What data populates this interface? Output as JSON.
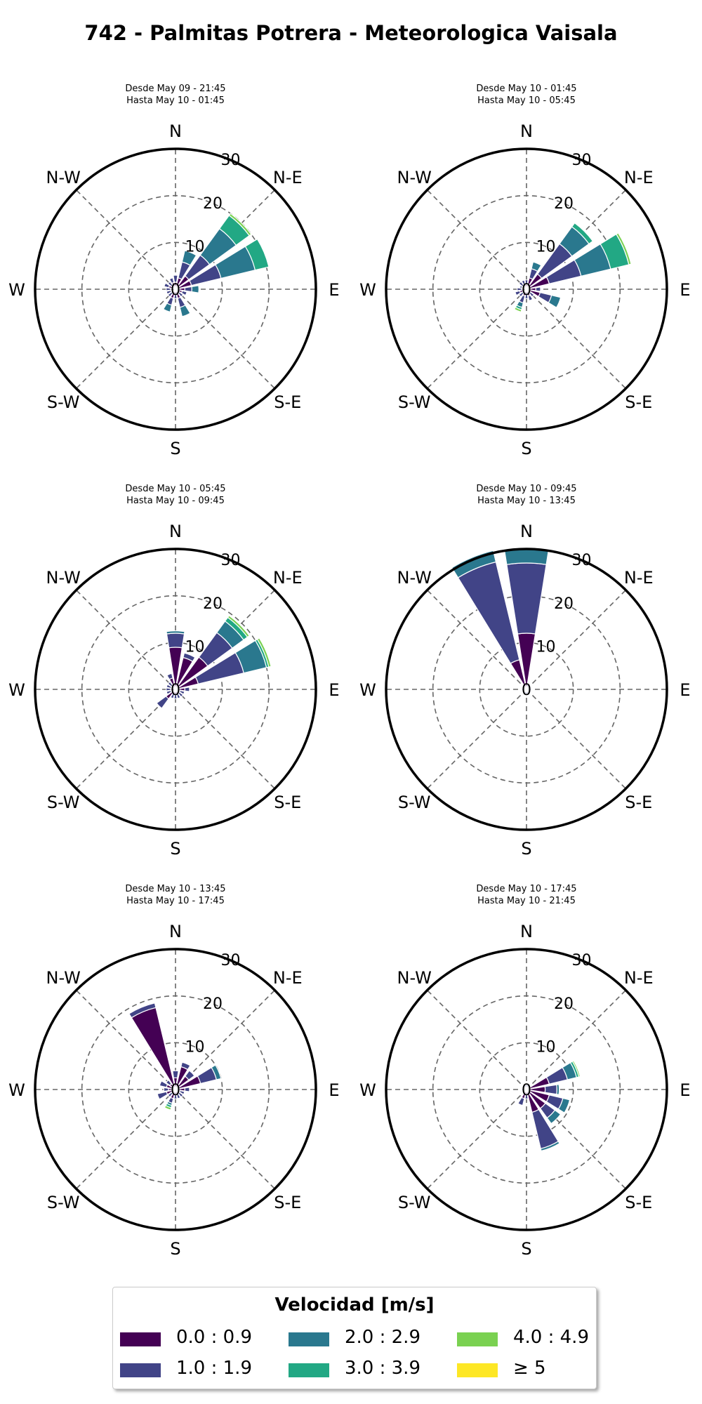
{
  "title": "742 - Palmitas Potrera - Meteorologica Vaisala",
  "directions": [
    "N",
    "N-E",
    "E",
    "S-E",
    "S",
    "S-W",
    "W",
    "N-W"
  ],
  "colors": {
    "background": "#ffffff",
    "bin_colors": [
      "#440154",
      "#414487",
      "#2a788e",
      "#22a884",
      "#7ad151",
      "#fde725"
    ]
  },
  "chart_data": [
    {
      "type": "windrose",
      "subtitle_line1": "Desde May 09 - 21:45",
      "subtitle_line2": "Hasta May 10 - 01:45",
      "radial_ticks": [
        "0",
        "10",
        "20",
        "30"
      ],
      "rmax": 30,
      "bars": [
        {
          "dir": 0,
          "cum": [
            1.5,
            3.0
          ]
        },
        {
          "dir": 22.5,
          "cum": [
            2.5,
            6.0,
            8.5
          ]
        },
        {
          "dir": 45,
          "cum": [
            3.5,
            9.0,
            16.0,
            19.5,
            20.0
          ]
        },
        {
          "dir": 67.5,
          "cum": [
            3.5,
            10.0,
            17.5,
            20.5
          ]
        },
        {
          "dir": 90,
          "cum": [
            2.0,
            3.5,
            5.0
          ]
        },
        {
          "dir": 112.5,
          "cum": [
            1.5,
            2.5
          ]
        },
        {
          "dir": 135,
          "cum": [
            1.0,
            2.0
          ]
        },
        {
          "dir": 157.5,
          "cum": [
            2.0,
            4.0,
            6.0
          ]
        },
        {
          "dir": 180,
          "cum": [
            1.0,
            2.0
          ]
        },
        {
          "dir": 202.5,
          "cum": [
            2.0,
            3.5,
            5.0
          ]
        },
        {
          "dir": 225,
          "cum": [
            1.0,
            2.0
          ]
        },
        {
          "dir": 247.5,
          "cum": [
            1.0,
            2.0
          ]
        },
        {
          "dir": 270,
          "cum": [
            1.0,
            2.0
          ]
        },
        {
          "dir": 292.5,
          "cum": [
            1.5,
            2.5
          ]
        },
        {
          "dir": 315,
          "cum": [
            1.0,
            2.0
          ]
        },
        {
          "dir": 337.5,
          "cum": [
            1.5,
            2.5
          ]
        }
      ]
    },
    {
      "type": "windrose",
      "subtitle_line1": "Desde May 10 - 01:45",
      "subtitle_line2": "Hasta May 10 - 05:45",
      "radial_ticks": [
        "0",
        "10",
        "20",
        "30"
      ],
      "rmax": 30,
      "bars": [
        {
          "dir": 0,
          "cum": [
            1.0,
            2.0
          ]
        },
        {
          "dir": 22.5,
          "cum": [
            2.5,
            4.5,
            6.0
          ]
        },
        {
          "dir": 45,
          "cum": [
            4.0,
            12.0,
            16.5,
            17.5
          ]
        },
        {
          "dir": 67.5,
          "cum": [
            5.0,
            12.0,
            18.5,
            22.5,
            23.0
          ]
        },
        {
          "dir": 90,
          "cum": [
            2.0,
            3.0
          ]
        },
        {
          "dir": 112.5,
          "cum": [
            3.0,
            5.5,
            7.5
          ]
        },
        {
          "dir": 135,
          "cum": [
            1.0,
            2.0
          ]
        },
        {
          "dir": 157.5,
          "cum": [
            1.5,
            2.5
          ]
        },
        {
          "dir": 180,
          "cum": [
            1.0,
            2.0
          ]
        },
        {
          "dir": 202.5,
          "cum": [
            1.5,
            3.0,
            4.0,
            4.5,
            5.0
          ]
        },
        {
          "dir": 225,
          "cum": [
            1.0,
            2.0
          ]
        },
        {
          "dir": 247.5,
          "cum": [
            1.5,
            2.5
          ]
        },
        {
          "dir": 270,
          "cum": [
            1.0,
            2.0
          ]
        },
        {
          "dir": 292.5,
          "cum": [
            1.0,
            1.5
          ]
        },
        {
          "dir": 315,
          "cum": [
            1.0,
            2.0
          ]
        },
        {
          "dir": 337.5,
          "cum": [
            1.0,
            2.0
          ]
        }
      ]
    },
    {
      "type": "windrose",
      "subtitle_line1": "Desde May 10 - 05:45",
      "subtitle_line2": "Hasta May 10 - 09:45",
      "radial_ticks": [
        "0",
        "10",
        "20",
        "30"
      ],
      "rmax": 30,
      "bars": [
        {
          "dir": 0,
          "cum": [
            9.0,
            12.0,
            12.5
          ]
        },
        {
          "dir": 22.5,
          "cum": [
            7.0,
            8.0
          ]
        },
        {
          "dir": 45,
          "cum": [
            8.5,
            15.0,
            18.0,
            19.0,
            19.5
          ]
        },
        {
          "dir": 67.5,
          "cum": [
            5.0,
            15.0,
            20.0,
            20.5,
            21.0
          ]
        },
        {
          "dir": 90,
          "cum": [
            2.0,
            3.0
          ]
        },
        {
          "dir": 112.5,
          "cum": [
            1.0,
            2.0
          ]
        },
        {
          "dir": 135,
          "cum": [
            1.0,
            2.0
          ]
        },
        {
          "dir": 157.5,
          "cum": [
            1.0,
            2.0
          ]
        },
        {
          "dir": 180,
          "cum": [
            1.0,
            2.0
          ]
        },
        {
          "dir": 202.5,
          "cum": [
            1.0,
            2.0
          ]
        },
        {
          "dir": 225,
          "cum": [
            2.5,
            5.0
          ]
        },
        {
          "dir": 247.5,
          "cum": [
            1.0,
            2.0
          ]
        },
        {
          "dir": 270,
          "cum": [
            1.0,
            2.0
          ]
        },
        {
          "dir": 292.5,
          "cum": [
            1.0,
            2.0
          ]
        },
        {
          "dir": 315,
          "cum": [
            1.0,
            2.0
          ]
        },
        {
          "dir": 337.5,
          "cum": [
            2.5,
            3.5
          ]
        }
      ]
    },
    {
      "type": "windrose",
      "subtitle_line1": "Desde May 10 - 09:45",
      "subtitle_line2": "Hasta May 10 - 13:45",
      "radial_ticks": [
        "0",
        "10",
        "20",
        "30"
      ],
      "rmax": 30,
      "bars": [
        {
          "dir": 0,
          "cum": [
            12.0,
            27.0,
            30.0
          ]
        },
        {
          "dir": 22.5,
          "cum": [
            0.5,
            1.0
          ]
        },
        {
          "dir": 45,
          "cum": [
            0.5,
            1.0
          ]
        },
        {
          "dir": 67.5,
          "cum": [
            0.5,
            1.0
          ]
        },
        {
          "dir": 90,
          "cum": [
            0.5,
            1.0
          ]
        },
        {
          "dir": 112.5,
          "cum": [
            0.5,
            1.0
          ]
        },
        {
          "dir": 135,
          "cum": [
            0.5,
            1.0
          ]
        },
        {
          "dir": 157.5,
          "cum": [
            0.5,
            1.0
          ]
        },
        {
          "dir": 180,
          "cum": [
            0.5,
            1.0
          ]
        },
        {
          "dir": 202.5,
          "cum": [
            0.5,
            1.0
          ]
        },
        {
          "dir": 225,
          "cum": [
            0.5,
            1.0
          ]
        },
        {
          "dir": 247.5,
          "cum": [
            0.5,
            1.0
          ]
        },
        {
          "dir": 270,
          "cum": [
            0.5,
            1.0
          ]
        },
        {
          "dir": 292.5,
          "cum": [
            0.5,
            1.0
          ]
        },
        {
          "dir": 315,
          "cum": [
            0.5,
            1.0
          ]
        },
        {
          "dir": 337.5,
          "cum": [
            6.5,
            28.0,
            30.5
          ]
        }
      ]
    },
    {
      "type": "windrose",
      "subtitle_line1": "Desde May 10 - 13:45",
      "subtitle_line2": "Hasta May 10 - 17:45",
      "radial_ticks": [
        "0",
        "10",
        "20",
        "30"
      ],
      "rmax": 30,
      "bars": [
        {
          "dir": 0,
          "cum": [
            2.5,
            4.0
          ]
        },
        {
          "dir": 22.5,
          "cum": [
            5.0,
            6.0
          ]
        },
        {
          "dir": 45,
          "cum": [
            3.5,
            5.0
          ]
        },
        {
          "dir": 67.5,
          "cum": [
            5.5,
            9.0,
            10.0
          ]
        },
        {
          "dir": 90,
          "cum": [
            2.0,
            3.0
          ]
        },
        {
          "dir": 112.5,
          "cum": [
            1.0,
            2.0
          ]
        },
        {
          "dir": 135,
          "cum": [
            1.0,
            2.0
          ]
        },
        {
          "dir": 157.5,
          "cum": [
            1.0,
            2.0
          ]
        },
        {
          "dir": 180,
          "cum": [
            1.0,
            2.0
          ]
        },
        {
          "dir": 202.5,
          "cum": [
            2.0,
            3.0,
            3.5,
            4.0,
            4.5
          ]
        },
        {
          "dir": 225,
          "cum": [
            1.0,
            2.0
          ]
        },
        {
          "dir": 247.5,
          "cum": [
            2.0,
            4.0
          ]
        },
        {
          "dir": 270,
          "cum": [
            1.5,
            2.5
          ]
        },
        {
          "dir": 292.5,
          "cum": [
            2.0,
            3.5
          ]
        },
        {
          "dir": 315,
          "cum": [
            1.5,
            2.5
          ]
        },
        {
          "dir": 337.5,
          "cum": [
            18.0,
            19.0
          ]
        }
      ]
    },
    {
      "type": "windrose",
      "subtitle_line1": "Desde May 10 - 17:45",
      "subtitle_line2": "Hasta May 10 - 21:45",
      "radial_ticks": [
        "0",
        "10",
        "20",
        "30"
      ],
      "rmax": 30,
      "bars": [
        {
          "dir": 0,
          "cum": [
            0.5,
            1.0
          ]
        },
        {
          "dir": 22.5,
          "cum": [
            0.5,
            1.0
          ]
        },
        {
          "dir": 45,
          "cum": [
            0.5,
            1.0
          ]
        },
        {
          "dir": 67.5,
          "cum": [
            5.0,
            9.0,
            11.0,
            11.5,
            11.8
          ]
        },
        {
          "dir": 90,
          "cum": [
            4.0,
            6.5,
            7.0
          ]
        },
        {
          "dir": 112.5,
          "cum": [
            5.0,
            8.0,
            9.5
          ]
        },
        {
          "dir": 135,
          "cum": [
            5.0,
            7.5,
            9.0
          ]
        },
        {
          "dir": 157.5,
          "cum": [
            5.0,
            13.0,
            13.5
          ]
        },
        {
          "dir": 180,
          "cum": [
            1.0,
            2.0
          ]
        },
        {
          "dir": 202.5,
          "cum": [
            2.0,
            3.5
          ]
        },
        {
          "dir": 225,
          "cum": [
            0.5,
            1.0
          ]
        },
        {
          "dir": 247.5,
          "cum": [
            0.5,
            1.0
          ]
        },
        {
          "dir": 270,
          "cum": [
            0.5,
            1.0
          ]
        },
        {
          "dir": 292.5,
          "cum": [
            0.5,
            1.0
          ]
        },
        {
          "dir": 315,
          "cum": [
            0.5,
            1.0
          ]
        },
        {
          "dir": 337.5,
          "cum": [
            0.5,
            1.0
          ]
        }
      ]
    }
  ],
  "legend": {
    "title": "Velocidad [m/s]",
    "items": [
      {
        "label": "0.0 : 0.9",
        "color": "#440154"
      },
      {
        "label": "1.0 : 1.9",
        "color": "#414487"
      },
      {
        "label": "2.0 : 2.9",
        "color": "#2a788e"
      },
      {
        "label": "3.0 : 3.9",
        "color": "#22a884"
      },
      {
        "label": "4.0 : 4.9",
        "color": "#7ad151"
      },
      {
        "label": "≥  5",
        "color": "#fde725"
      }
    ]
  }
}
